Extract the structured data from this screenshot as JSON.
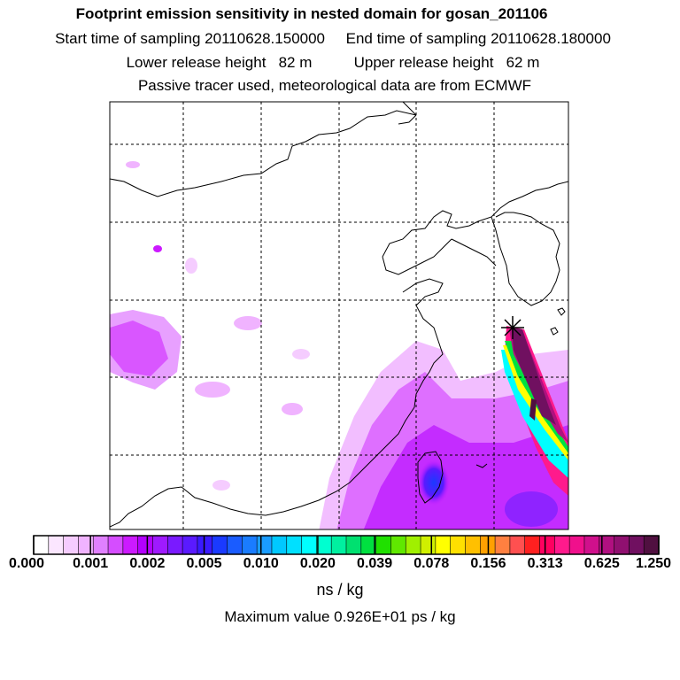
{
  "header": {
    "title": "Footprint emission sensitivity in nested domain for gosan_201106",
    "line2": "Start time of sampling 20110628.150000     End time of sampling 20110628.180000",
    "line3": "Lower release height   82 m          Upper release height   62 m",
    "line4": "Passive tracer used, meteorological data are from ECMWF"
  },
  "colorbar": {
    "unit": "ns / kg",
    "labels": [
      "0.000",
      "0.001",
      "0.002",
      "0.005",
      "0.010",
      "0.020",
      "0.039",
      "0.078",
      "0.156",
      "0.313",
      "0.625",
      "1.250"
    ],
    "colors": [
      "#ffffff",
      "#fbe6ff",
      "#f5ccff",
      "#f0b3ff",
      "#e080ff",
      "#d54dff",
      "#cc1aff",
      "#b300ff",
      "#9f1aff",
      "#7a1aff",
      "#5a1aff",
      "#3a1aff",
      "#1a3aff",
      "#1a5cff",
      "#1a7cff",
      "#1a9cff",
      "#00c8ff",
      "#00e0ff",
      "#00ffff",
      "#00ffd0",
      "#00f0a0",
      "#00e070",
      "#00e040",
      "#20e000",
      "#60e800",
      "#a0f000",
      "#d0f000",
      "#ffff00",
      "#ffe000",
      "#ffc000",
      "#ffa000",
      "#ff8040",
      "#ff5050",
      "#ff2020",
      "#ff0060",
      "#ff1a8c",
      "#f0108c",
      "#d0108c",
      "#b01080",
      "#901070",
      "#701060",
      "#501040"
    ]
  },
  "footer": {
    "max_value": "Maximum value  0.926E+01 ps / kg"
  },
  "map": {
    "release_marker": "release-star-icon",
    "grid": "dashed"
  }
}
